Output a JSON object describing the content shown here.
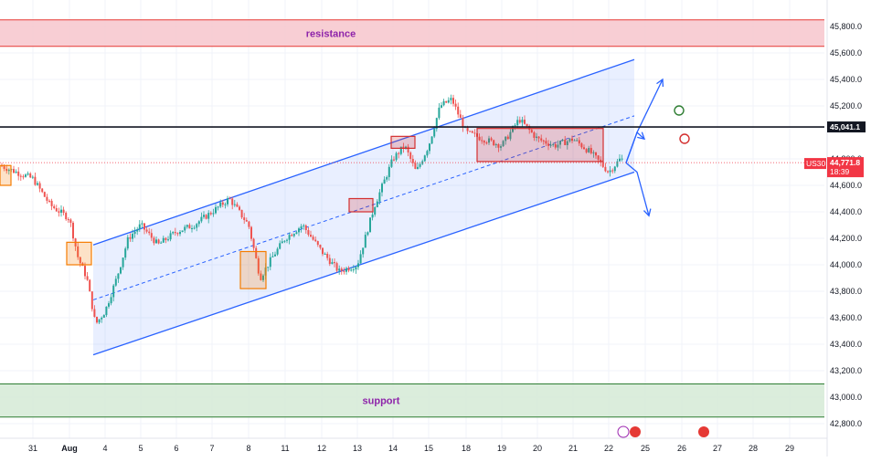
{
  "chart_data": {
    "type": "candlestick",
    "symbol": "US30",
    "last_price": "44,771.8",
    "countdown": "18:39",
    "level_line_label": "45,041.1",
    "x_tick_labels": [
      "31",
      "Aug",
      "4",
      "5",
      "6",
      "7",
      "8",
      "11",
      "12",
      "13",
      "14",
      "15",
      "18",
      "19",
      "20",
      "21",
      "22",
      "25",
      "26",
      "27",
      "28",
      "29"
    ],
    "y_tick_labels": [
      "45,800.0",
      "45,600.0",
      "45,400.0",
      "45,200.0",
      "44,800.0",
      "44,600.0",
      "44,400.0",
      "44,200.0",
      "44,000.0",
      "43,800.0",
      "43,600.0",
      "43,400.0",
      "43,200.0",
      "43,000.0",
      "42,800.0"
    ],
    "y_range": [
      42800,
      45800
    ],
    "zones": [
      {
        "name": "resistance",
        "label": "resistance",
        "from": 45650,
        "to": 45850,
        "color": "#f7c6cc"
      },
      {
        "name": "support",
        "label": "support",
        "from": 42850,
        "to": 43100,
        "color": "#d5ead6"
      }
    ],
    "horizontal_level": 45041.1,
    "channel": {
      "upper": [
        [
          "Aug 4",
          44150
        ],
        [
          "Aug 22",
          45550
        ]
      ],
      "lower": [
        [
          "Aug 4",
          43320
        ],
        [
          "Aug 22",
          44700
        ]
      ]
    },
    "price_path": [
      [
        "Jul 30",
        44750
      ],
      [
        "Jul 31",
        44650
      ],
      [
        "Jul 31",
        44450
      ],
      [
        "Aug 1",
        44350
      ],
      [
        "Aug 1",
        44050
      ],
      [
        "Aug 1",
        43900
      ],
      [
        "Aug 1",
        43550
      ],
      [
        "Aug 4",
        43650
      ],
      [
        "Aug 4",
        43900
      ],
      [
        "Aug 4",
        44200
      ],
      [
        "Aug 5",
        44300
      ],
      [
        "Aug 5",
        44150
      ],
      [
        "Aug 6",
        44250
      ],
      [
        "Aug 6",
        44300
      ],
      [
        "Aug 7",
        44400
      ],
      [
        "Aug 7",
        44500
      ],
      [
        "Aug 8",
        44300
      ],
      [
        "Aug 8",
        43900
      ],
      [
        "Aug 8",
        44050
      ],
      [
        "Aug 11",
        44200
      ],
      [
        "Aug 11",
        44300
      ],
      [
        "Aug 12",
        44100
      ],
      [
        "Aug 12",
        43950
      ],
      [
        "Aug 13",
        44000
      ],
      [
        "Aug 13",
        44450
      ],
      [
        "Aug 14",
        44800
      ],
      [
        "Aug 14",
        44900
      ],
      [
        "Aug 14",
        44700
      ],
      [
        "Aug 15",
        44900
      ],
      [
        "Aug 15",
        45200
      ],
      [
        "Aug 15",
        45250
      ],
      [
        "Aug 18",
        45000
      ],
      [
        "Aug 18",
        44950
      ],
      [
        "Aug 19",
        44900
      ],
      [
        "Aug 19",
        45100
      ],
      [
        "Aug 20",
        44950
      ],
      [
        "Aug 20",
        44900
      ],
      [
        "Aug 21",
        44950
      ],
      [
        "Aug 21",
        44850
      ],
      [
        "Aug 22",
        44700
      ],
      [
        "Aug 22",
        44800
      ],
      [
        "Aug 22",
        44772
      ]
    ],
    "highlight_boxes": [
      {
        "color": "#f57c00",
        "range": [
          "Jul 30",
          "Jul 30"
        ],
        "from": 44600,
        "to": 44750
      },
      {
        "color": "#f57c00",
        "range": [
          "Aug 1",
          "Aug 1"
        ],
        "from": 44000,
        "to": 44170
      },
      {
        "color": "#f57c00",
        "range": [
          "Aug 8",
          "Aug 8"
        ],
        "from": 43820,
        "to": 44100
      },
      {
        "color": "#d32f2f",
        "range": [
          "Aug 13",
          "Aug 13"
        ],
        "from": 44400,
        "to": 44500
      },
      {
        "color": "#d32f2f",
        "range": [
          "Aug 14",
          "Aug 14"
        ],
        "from": 44880,
        "to": 44970
      },
      {
        "color": "#d32f2f",
        "range": [
          "Aug 18",
          "Aug 21"
        ],
        "from": 44780,
        "to": 45030
      }
    ],
    "projection_arrows": [
      "up",
      "up",
      "down"
    ],
    "markers": [
      {
        "kind": "circle",
        "color": "#2e7d32"
      },
      {
        "kind": "circle",
        "color": "#d32f2f"
      }
    ],
    "grid": true,
    "colors": {
      "up": "#26a69a",
      "down": "#ef5350",
      "channel": "#2962ff",
      "level": "#131722",
      "price_label": "#f23645"
    }
  }
}
